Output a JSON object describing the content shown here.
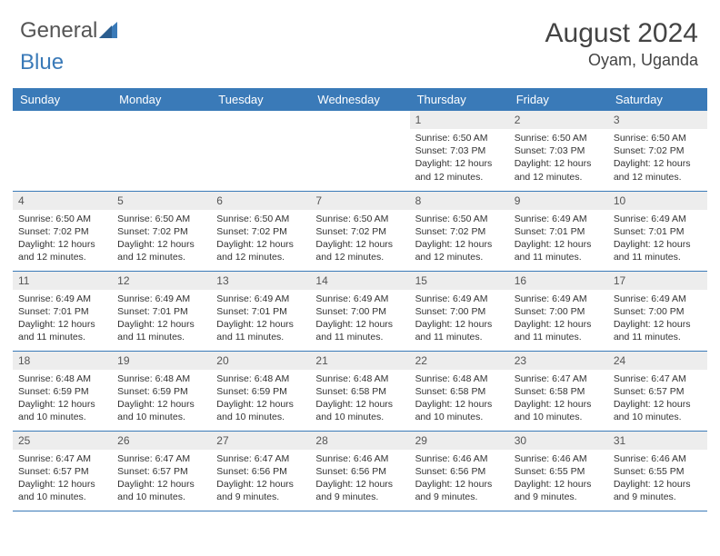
{
  "brand": {
    "part1": "General",
    "part2": "Blue"
  },
  "title": "August 2024",
  "location": "Oyam, Uganda",
  "colors": {
    "header_bg": "#3a7ab8",
    "header_text": "#ffffff",
    "daynum_bg": "#ededed",
    "cell_border": "#3a7ab8",
    "body_text": "#333333",
    "page_bg": "#ffffff"
  },
  "typography": {
    "title_fontsize": 30,
    "location_fontsize": 18,
    "day_header_fontsize": 13,
    "daynum_fontsize": 12,
    "daydata_fontsize": 10.5
  },
  "day_headers": [
    "Sunday",
    "Monday",
    "Tuesday",
    "Wednesday",
    "Thursday",
    "Friday",
    "Saturday"
  ],
  "weeks": [
    [
      null,
      null,
      null,
      null,
      {
        "n": "1",
        "sr": "6:50 AM",
        "ss": "7:03 PM",
        "dl": "12 hours and 12 minutes."
      },
      {
        "n": "2",
        "sr": "6:50 AM",
        "ss": "7:03 PM",
        "dl": "12 hours and 12 minutes."
      },
      {
        "n": "3",
        "sr": "6:50 AM",
        "ss": "7:02 PM",
        "dl": "12 hours and 12 minutes."
      }
    ],
    [
      {
        "n": "4",
        "sr": "6:50 AM",
        "ss": "7:02 PM",
        "dl": "12 hours and 12 minutes."
      },
      {
        "n": "5",
        "sr": "6:50 AM",
        "ss": "7:02 PM",
        "dl": "12 hours and 12 minutes."
      },
      {
        "n": "6",
        "sr": "6:50 AM",
        "ss": "7:02 PM",
        "dl": "12 hours and 12 minutes."
      },
      {
        "n": "7",
        "sr": "6:50 AM",
        "ss": "7:02 PM",
        "dl": "12 hours and 12 minutes."
      },
      {
        "n": "8",
        "sr": "6:50 AM",
        "ss": "7:02 PM",
        "dl": "12 hours and 12 minutes."
      },
      {
        "n": "9",
        "sr": "6:49 AM",
        "ss": "7:01 PM",
        "dl": "12 hours and 11 minutes."
      },
      {
        "n": "10",
        "sr": "6:49 AM",
        "ss": "7:01 PM",
        "dl": "12 hours and 11 minutes."
      }
    ],
    [
      {
        "n": "11",
        "sr": "6:49 AM",
        "ss": "7:01 PM",
        "dl": "12 hours and 11 minutes."
      },
      {
        "n": "12",
        "sr": "6:49 AM",
        "ss": "7:01 PM",
        "dl": "12 hours and 11 minutes."
      },
      {
        "n": "13",
        "sr": "6:49 AM",
        "ss": "7:01 PM",
        "dl": "12 hours and 11 minutes."
      },
      {
        "n": "14",
        "sr": "6:49 AM",
        "ss": "7:00 PM",
        "dl": "12 hours and 11 minutes."
      },
      {
        "n": "15",
        "sr": "6:49 AM",
        "ss": "7:00 PM",
        "dl": "12 hours and 11 minutes."
      },
      {
        "n": "16",
        "sr": "6:49 AM",
        "ss": "7:00 PM",
        "dl": "12 hours and 11 minutes."
      },
      {
        "n": "17",
        "sr": "6:49 AM",
        "ss": "7:00 PM",
        "dl": "12 hours and 11 minutes."
      }
    ],
    [
      {
        "n": "18",
        "sr": "6:48 AM",
        "ss": "6:59 PM",
        "dl": "12 hours and 10 minutes."
      },
      {
        "n": "19",
        "sr": "6:48 AM",
        "ss": "6:59 PM",
        "dl": "12 hours and 10 minutes."
      },
      {
        "n": "20",
        "sr": "6:48 AM",
        "ss": "6:59 PM",
        "dl": "12 hours and 10 minutes."
      },
      {
        "n": "21",
        "sr": "6:48 AM",
        "ss": "6:58 PM",
        "dl": "12 hours and 10 minutes."
      },
      {
        "n": "22",
        "sr": "6:48 AM",
        "ss": "6:58 PM",
        "dl": "12 hours and 10 minutes."
      },
      {
        "n": "23",
        "sr": "6:47 AM",
        "ss": "6:58 PM",
        "dl": "12 hours and 10 minutes."
      },
      {
        "n": "24",
        "sr": "6:47 AM",
        "ss": "6:57 PM",
        "dl": "12 hours and 10 minutes."
      }
    ],
    [
      {
        "n": "25",
        "sr": "6:47 AM",
        "ss": "6:57 PM",
        "dl": "12 hours and 10 minutes."
      },
      {
        "n": "26",
        "sr": "6:47 AM",
        "ss": "6:57 PM",
        "dl": "12 hours and 10 minutes."
      },
      {
        "n": "27",
        "sr": "6:47 AM",
        "ss": "6:56 PM",
        "dl": "12 hours and 9 minutes."
      },
      {
        "n": "28",
        "sr": "6:46 AM",
        "ss": "6:56 PM",
        "dl": "12 hours and 9 minutes."
      },
      {
        "n": "29",
        "sr": "6:46 AM",
        "ss": "6:56 PM",
        "dl": "12 hours and 9 minutes."
      },
      {
        "n": "30",
        "sr": "6:46 AM",
        "ss": "6:55 PM",
        "dl": "12 hours and 9 minutes."
      },
      {
        "n": "31",
        "sr": "6:46 AM",
        "ss": "6:55 PM",
        "dl": "12 hours and 9 minutes."
      }
    ]
  ],
  "labels": {
    "sunrise": "Sunrise:",
    "sunset": "Sunset:",
    "daylight": "Daylight:"
  }
}
